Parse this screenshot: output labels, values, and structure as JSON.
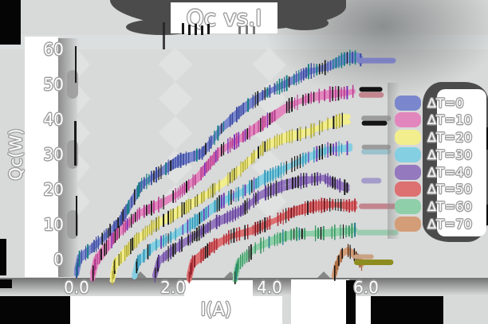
{
  "chart_data": {
    "type": "line",
    "title": "Qc vs.I",
    "xlabel": "I(A)",
    "ylabel": "Qc(W)",
    "x_ticks": [
      "0.0",
      "2.0",
      "4.0",
      "6.0"
    ],
    "y_ticks": [
      "60",
      "50",
      "40",
      "30",
      "20",
      "10",
      "0"
    ],
    "xlim": [
      0,
      6.8
    ],
    "ylim": [
      -5,
      62
    ],
    "grid": false,
    "legend_position": "right",
    "background_color": "#d8d9d9",
    "series": [
      {
        "label": "ΔT=0",
        "color": "#7b87cc",
        "tick_color": "#39499e",
        "alt_tick_color": "#0d7d7f",
        "cap_color": "#7d81c2",
        "points": [
          [
            0,
            -4
          ],
          [
            0.06,
            0
          ],
          [
            0.45,
            5
          ],
          [
            0.9,
            11
          ],
          [
            1.35,
            21
          ],
          [
            1.8,
            25
          ],
          [
            2.1,
            28
          ],
          [
            2.6,
            31
          ],
          [
            3.0,
            38
          ],
          [
            3.45,
            43
          ],
          [
            3.9,
            47
          ],
          [
            4.3,
            50
          ],
          [
            4.8,
            54
          ],
          [
            5.2,
            55
          ],
          [
            5.6,
            57
          ],
          [
            5.88,
            57
          ]
        ],
        "cap": [
          [
            5.85,
            56.8
          ],
          [
            6.55,
            56.8
          ]
        ]
      },
      {
        "label": "ΔT=10",
        "color": "#e287bd",
        "tick_color": "#b53a8f",
        "alt_tick_color": "#7a2bb5",
        "cap_color": "#c2858e",
        "cap2_color": "#131313",
        "points": [
          [
            0.33,
            -5
          ],
          [
            0.4,
            -1
          ],
          [
            0.8,
            6
          ],
          [
            1.3,
            13
          ],
          [
            1.7,
            16
          ],
          [
            2.1,
            19
          ],
          [
            2.5,
            23
          ],
          [
            3.0,
            31
          ],
          [
            3.4,
            35
          ],
          [
            3.9,
            40
          ],
          [
            4.4,
            44
          ],
          [
            4.8,
            45.5
          ],
          [
            5.3,
            47
          ],
          [
            5.72,
            48
          ]
        ],
        "cap": [
          [
            5.9,
            47.0
          ],
          [
            6.3,
            47.0
          ]
        ],
        "cap2": [
          [
            5.9,
            48.6
          ],
          [
            6.28,
            48.6
          ]
        ]
      },
      {
        "label": "ΔT=20",
        "color": "#f2ee8d",
        "tick_color": "#b5ae3a",
        "alt_tick_color": "#6e6e23",
        "cap_color": "#9c9c9c",
        "cap2_color": "#141414",
        "points": [
          [
            0.74,
            -5
          ],
          [
            0.8,
            -1
          ],
          [
            1.2,
            5
          ],
          [
            1.6,
            9
          ],
          [
            2.0,
            12
          ],
          [
            2.5,
            17
          ],
          [
            3.0,
            22
          ],
          [
            3.4,
            26
          ],
          [
            3.9,
            32
          ],
          [
            4.35,
            35
          ],
          [
            4.8,
            37
          ],
          [
            5.2,
            39
          ],
          [
            5.62,
            40
          ]
        ],
        "cap": [
          [
            5.95,
            40.3
          ],
          [
            6.45,
            40.3
          ]
        ],
        "cap2": [
          [
            5.95,
            38.9
          ],
          [
            6.38,
            38.9
          ]
        ]
      },
      {
        "label": "ΔT=30",
        "color": "#84cfe2",
        "tick_color": "#2f93b5",
        "alt_tick_color": "#6a35b0",
        "cap_color": "#9cc2cc",
        "cap2_color": "#9c9c9c",
        "points": [
          [
            1.2,
            -5
          ],
          [
            1.27,
            -1
          ],
          [
            1.6,
            4
          ],
          [
            2.0,
            7
          ],
          [
            2.5,
            11
          ],
          [
            3.0,
            16
          ],
          [
            3.4,
            19
          ],
          [
            3.9,
            24
          ],
          [
            4.4,
            27
          ],
          [
            4.8,
            29
          ],
          [
            5.2,
            31
          ],
          [
            5.66,
            32
          ]
        ],
        "cap": [
          [
            5.95,
            30.8
          ],
          [
            6.45,
            30.8
          ]
        ],
        "cap2": [
          [
            5.95,
            32.1
          ],
          [
            6.45,
            32.1
          ]
        ]
      },
      {
        "label": "ΔT=40",
        "color": "#9579bf",
        "tick_color": "#5d3a94",
        "alt_tick_color": "#2d2d2d",
        "cap_color": "#a49cc9",
        "points": [
          [
            1.62,
            -5
          ],
          [
            1.7,
            -1
          ],
          [
            2.0,
            2
          ],
          [
            2.4,
            6
          ],
          [
            2.9,
            11
          ],
          [
            3.4,
            14
          ],
          [
            3.8,
            18
          ],
          [
            4.3,
            21
          ],
          [
            4.7,
            23
          ],
          [
            5.1,
            24
          ],
          [
            5.6,
            20.5
          ]
        ],
        "cap": [
          [
            5.95,
            22.5
          ],
          [
            6.25,
            22.5
          ]
        ]
      },
      {
        "label": "ΔT=50",
        "color": "#dd7071",
        "tick_color": "#b03038",
        "alt_tick_color": "#7d1520",
        "cap_color": "#c2868e",
        "points": [
          [
            2.33,
            -5
          ],
          [
            2.4,
            -1
          ],
          [
            2.8,
            3
          ],
          [
            3.2,
            6
          ],
          [
            3.6,
            8
          ],
          [
            4.0,
            11
          ],
          [
            4.5,
            14
          ],
          [
            4.9,
            15
          ],
          [
            5.3,
            15.5
          ],
          [
            5.76,
            15.5
          ]
        ],
        "cap": [
          [
            5.9,
            15.2
          ],
          [
            6.58,
            15.2
          ]
        ]
      },
      {
        "label": "ΔT=60",
        "color": "#8fcfa9",
        "tick_color": "#35955f",
        "alt_tick_color": "#1f7a8a",
        "cap_color": "#9cccb0",
        "points": [
          [
            3.28,
            -5
          ],
          [
            3.35,
            -1
          ],
          [
            3.7,
            3
          ],
          [
            4.1,
            5
          ],
          [
            4.5,
            7
          ],
          [
            5.0,
            8
          ],
          [
            5.4,
            8.5
          ],
          [
            5.76,
            8.5
          ]
        ],
        "cap": [
          [
            5.85,
            7.7
          ],
          [
            6.6,
            7.7
          ]
        ]
      },
      {
        "label": "ΔT=70",
        "color": "#d39d78",
        "tick_color": "#a5633a",
        "alt_tick_color": "#5e3317",
        "cap_color": "#8d8d1f",
        "cap2_color": "#c9a183",
        "points": [
          [
            5.33,
            -5
          ],
          [
            5.38,
            -2
          ],
          [
            5.5,
            1.5
          ],
          [
            5.62,
            2.5
          ],
          [
            5.75,
            1.5
          ],
          [
            5.9,
            -1
          ]
        ],
        "cap": [
          [
            5.8,
            -0.8
          ],
          [
            6.5,
            -0.8
          ]
        ],
        "cap2": [
          [
            5.78,
            0.8
          ],
          [
            6.1,
            0.8
          ]
        ]
      }
    ]
  }
}
